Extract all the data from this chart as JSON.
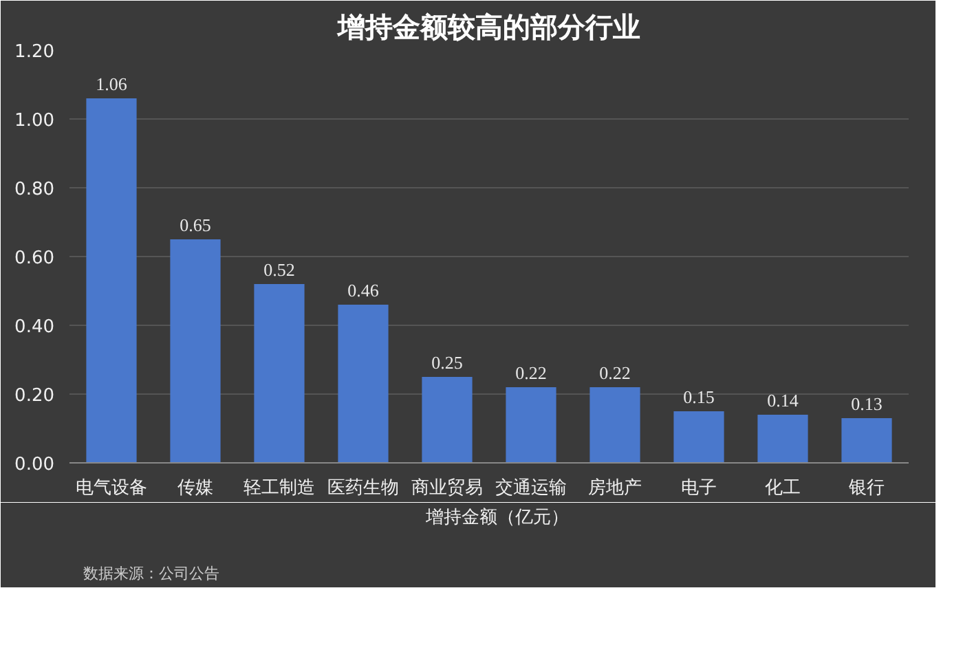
{
  "chart_data": {
    "type": "bar",
    "title": "增持金额较高的部分行业",
    "categories": [
      "电气设备",
      "传媒",
      "轻工制造",
      "医药生物",
      "商业贸易",
      "交通运输",
      "房地产",
      "电子",
      "化工",
      "银行"
    ],
    "series": [
      {
        "name": "增持金额（亿元）",
        "color": "#4a78cc",
        "values": [
          1.06,
          0.65,
          0.52,
          0.46,
          0.25,
          0.22,
          0.22,
          0.15,
          0.14,
          0.13
        ]
      }
    ],
    "ylim": [
      0,
      1.2
    ],
    "yticks": [
      {
        "value": 0,
        "label": "0.00"
      },
      {
        "value": 0.2,
        "label": "0.20"
      },
      {
        "value": 0.4,
        "label": "0.40"
      },
      {
        "value": 0.6,
        "label": "0.60"
      },
      {
        "value": 0.8,
        "label": "0.80"
      },
      {
        "value": 1.0,
        "label": "1.00"
      },
      {
        "value": 1.2,
        "label": "1.20"
      }
    ],
    "grid": "y",
    "legend": "bottom",
    "data_labels": true,
    "annotations": [
      "数据来源：公司公告"
    ]
  }
}
